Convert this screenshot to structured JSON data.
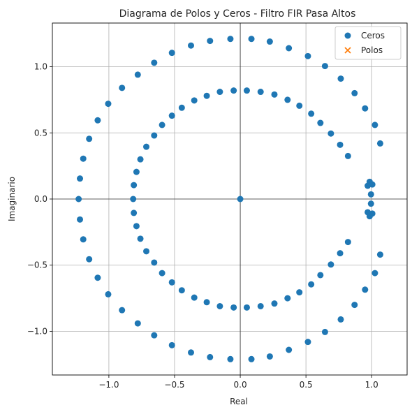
{
  "chart_data": {
    "type": "scatter",
    "title": "Diagrama de Polos y Ceros - Filtro FIR Pasa Altos",
    "xlabel": "Real",
    "ylabel": "Imaginario",
    "xlim": [
      -1.43,
      1.27
    ],
    "ylim": [
      -1.33,
      1.33
    ],
    "xticks": [
      -1.0,
      -0.5,
      0.0,
      0.5,
      1.0
    ],
    "xtick_labels": [
      "−1.0",
      "−0.5",
      "0.0",
      "0.5",
      "1.0"
    ],
    "yticks": [
      -1.0,
      -0.5,
      0.0,
      0.5,
      1.0
    ],
    "ytick_labels": [
      "−1.0",
      "−0.5",
      "0.0",
      "0.5",
      "1.0"
    ],
    "grid": true,
    "legend_position": "top-right",
    "series": [
      {
        "name": "Ceros",
        "marker": "circle",
        "color": "#1f77b4",
        "points": [
          [
            0.085,
            1.21
          ],
          [
            0.225,
            1.19
          ],
          [
            0.37,
            1.14
          ],
          [
            0.515,
            1.08
          ],
          [
            0.645,
            1.005
          ],
          [
            0.765,
            0.91
          ],
          [
            0.87,
            0.8
          ],
          [
            0.95,
            0.685
          ],
          [
            1.025,
            0.56
          ],
          [
            1.065,
            0.42
          ],
          [
            -0.075,
            1.21
          ],
          [
            -0.23,
            1.195
          ],
          [
            -0.375,
            1.16
          ],
          [
            -0.52,
            1.105
          ],
          [
            -0.655,
            1.03
          ],
          [
            -0.78,
            0.94
          ],
          [
            -0.9,
            0.84
          ],
          [
            -1.005,
            0.72
          ],
          [
            -1.085,
            0.595
          ],
          [
            -1.15,
            0.455
          ],
          [
            -1.195,
            0.305
          ],
          [
            -1.22,
            0.155
          ],
          [
            -1.23,
            0.0
          ],
          [
            0.085,
            -1.21
          ],
          [
            0.225,
            -1.19
          ],
          [
            0.37,
            -1.14
          ],
          [
            0.515,
            -1.08
          ],
          [
            0.645,
            -1.005
          ],
          [
            0.765,
            -0.91
          ],
          [
            0.87,
            -0.8
          ],
          [
            0.95,
            -0.685
          ],
          [
            1.025,
            -0.56
          ],
          [
            1.065,
            -0.42
          ],
          [
            -0.075,
            -1.21
          ],
          [
            -0.23,
            -1.195
          ],
          [
            -0.375,
            -1.16
          ],
          [
            -0.52,
            -1.105
          ],
          [
            -0.655,
            -1.03
          ],
          [
            -0.78,
            -0.94
          ],
          [
            -0.9,
            -0.84
          ],
          [
            -1.005,
            -0.72
          ],
          [
            -1.085,
            -0.595
          ],
          [
            -1.15,
            -0.455
          ],
          [
            -1.195,
            -0.305
          ],
          [
            -1.22,
            -0.155
          ],
          [
            0.05,
            0.82
          ],
          [
            0.155,
            0.81
          ],
          [
            0.26,
            0.79
          ],
          [
            0.36,
            0.75
          ],
          [
            0.45,
            0.705
          ],
          [
            0.54,
            0.645
          ],
          [
            0.61,
            0.575
          ],
          [
            0.69,
            0.495
          ],
          [
            0.76,
            0.41
          ],
          [
            0.82,
            0.325
          ],
          [
            -0.05,
            0.82
          ],
          [
            -0.155,
            0.81
          ],
          [
            -0.255,
            0.78
          ],
          [
            -0.35,
            0.745
          ],
          [
            -0.445,
            0.69
          ],
          [
            -0.52,
            0.63
          ],
          [
            -0.595,
            0.56
          ],
          [
            -0.655,
            0.48
          ],
          [
            -0.715,
            0.395
          ],
          [
            -0.76,
            0.3
          ],
          [
            -0.79,
            0.205
          ],
          [
            -0.81,
            0.105
          ],
          [
            -0.815,
            0.0
          ],
          [
            0.05,
            -0.82
          ],
          [
            0.155,
            -0.81
          ],
          [
            0.26,
            -0.79
          ],
          [
            0.36,
            -0.75
          ],
          [
            0.45,
            -0.705
          ],
          [
            0.54,
            -0.645
          ],
          [
            0.61,
            -0.575
          ],
          [
            0.69,
            -0.495
          ],
          [
            0.76,
            -0.41
          ],
          [
            0.82,
            -0.325
          ],
          [
            -0.05,
            -0.82
          ],
          [
            -0.155,
            -0.81
          ],
          [
            -0.255,
            -0.78
          ],
          [
            -0.35,
            -0.745
          ],
          [
            -0.445,
            -0.69
          ],
          [
            -0.52,
            -0.63
          ],
          [
            -0.595,
            -0.56
          ],
          [
            -0.655,
            -0.48
          ],
          [
            -0.715,
            -0.395
          ],
          [
            -0.76,
            -0.3
          ],
          [
            -0.79,
            -0.205
          ],
          [
            -0.81,
            -0.105
          ],
          [
            0.0,
            0.0
          ],
          [
            0.985,
            0.13
          ],
          [
            1.005,
            0.11
          ],
          [
            0.97,
            0.1
          ],
          [
            0.995,
            0.035
          ],
          [
            0.985,
            -0.13
          ],
          [
            1.005,
            -0.11
          ],
          [
            0.97,
            -0.1
          ],
          [
            0.995,
            -0.035
          ]
        ]
      },
      {
        "name": "Polos",
        "marker": "x",
        "color": "#ff7f0e",
        "points": []
      }
    ]
  }
}
